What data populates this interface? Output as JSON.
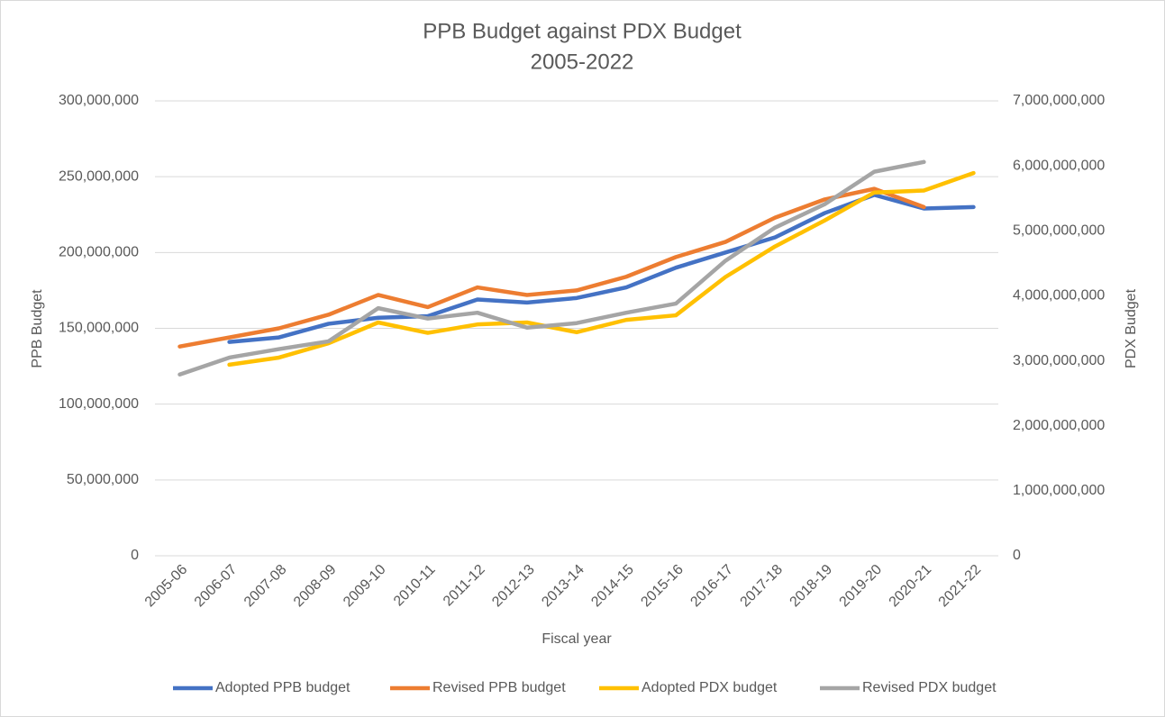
{
  "chart_data": {
    "type": "line",
    "title": "PPB Budget against PDX Budget",
    "subtitle": "2005-2022",
    "x_label": "Fiscal year",
    "y_label": "PPB Budget",
    "y2_label": "PDX Budget",
    "categories": [
      "2005-06",
      "2006-07",
      "2007-08",
      "2008-09",
      "2009-10",
      "2010-11",
      "2011-12",
      "2012-13",
      "2013-14",
      "2014-15",
      "2015-16",
      "2016-17",
      "2017-18",
      "2018-19",
      "2019-20",
      "2020-21",
      "2021-22"
    ],
    "ylim": [
      0,
      300000000
    ],
    "yticks": [
      0,
      {
        "value": 50000000,
        "label": "50,000,000"
      },
      {
        "value": 100000000,
        "label": "100,000,000"
      },
      {
        "value": 150000000,
        "label": "150,000,000"
      },
      {
        "value": 200000000,
        "label": "200,000,000"
      },
      {
        "value": 250000000,
        "label": "250,000,000"
      },
      {
        "value": 300000000,
        "label": "300,000,000"
      }
    ],
    "y2lim": [
      0,
      7000000000
    ],
    "y2ticks": [
      0,
      {
        "value": 1000000000,
        "label": "1,000,000,000"
      },
      {
        "value": 2000000000,
        "label": "2,000,000,000"
      },
      {
        "value": 3000000000,
        "label": "3,000,000,000"
      },
      {
        "value": 4000000000,
        "label": "4,000,000,000"
      },
      {
        "value": 5000000000,
        "label": "5,000,000,000"
      },
      {
        "value": 6000000000,
        "label": "6,000,000,000"
      },
      {
        "value": 7000000000,
        "label": "7,000,000,000"
      }
    ],
    "grid": true,
    "legend": "bottom",
    "series": [
      {
        "name": "Adopted PPB budget",
        "color": "#4472c4",
        "values": [
          null,
          141000000,
          144000000,
          153000000,
          157000000,
          158000000,
          169000000,
          167000000,
          170000000,
          177000000,
          190000000,
          200000000,
          210000000,
          226000000,
          238000000,
          229000000,
          230000000
        ]
      },
      {
        "name": "Revised PPB budget",
        "color": "#ed7d31",
        "values": [
          138000000,
          144000000,
          150000000,
          159000000,
          172000000,
          164000000,
          177000000,
          172000000,
          175000000,
          184000000,
          197000000,
          207000000,
          223000000,
          235000000,
          242000000,
          230000000,
          null
        ]
      },
      {
        "name": "Adopted PDX budget",
        "color": "#ffc000",
        "axis": "y2",
        "values": [
          null,
          2940000000,
          3050000000,
          3270000000,
          3590000000,
          3430000000,
          3560000000,
          3590000000,
          3440000000,
          3630000000,
          3700000000,
          4290000000,
          4760000000,
          5160000000,
          5590000000,
          5620000000,
          5890000000
        ]
      },
      {
        "name": "Revised PDX budget",
        "color": "#a5a5a5",
        "axis": "y2",
        "values": [
          2790000000,
          3050000000,
          3180000000,
          3300000000,
          3810000000,
          3650000000,
          3740000000,
          3510000000,
          3580000000,
          3740000000,
          3880000000,
          4540000000,
          5050000000,
          5410000000,
          5910000000,
          6060000000,
          null
        ]
      }
    ]
  }
}
